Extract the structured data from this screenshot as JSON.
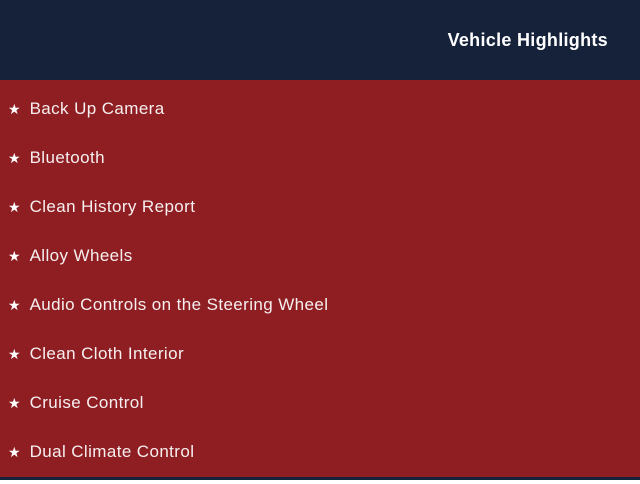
{
  "header": {
    "title": "Vehicle Highlights"
  },
  "list": {
    "bullet_icon": "star-icon",
    "bullet_glyph": "★",
    "items": [
      "Back Up Camera",
      "Bluetooth",
      "Clean History Report",
      "Alloy Wheels",
      "Audio Controls on the Steering Wheel",
      "Clean Cloth Interior",
      "Cruise Control",
      "Dual Climate Control"
    ]
  },
  "colors": {
    "header_bg": "#15223a",
    "body_bg": "#8f1e23",
    "header_text": "#ffffff",
    "item_text": "#f6efef"
  }
}
